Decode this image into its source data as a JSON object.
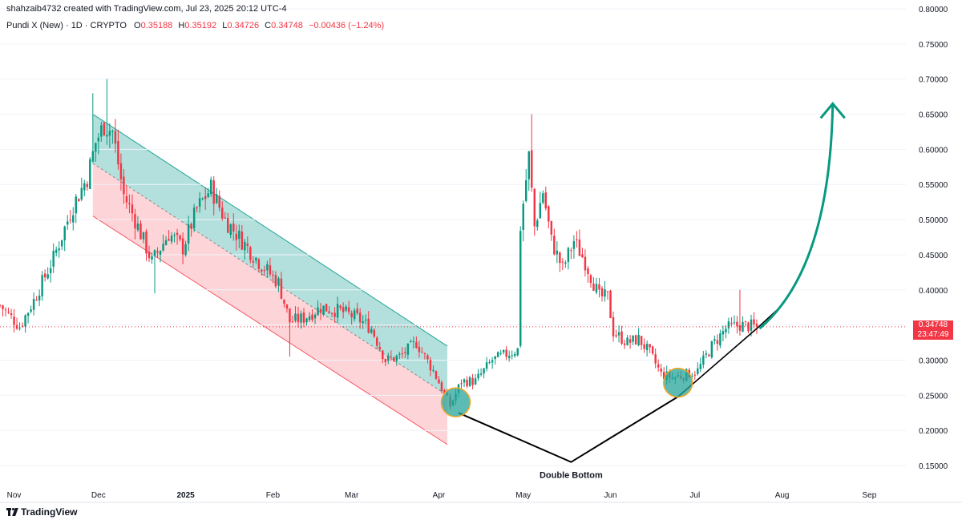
{
  "header": {
    "credit": "shahzaib4732 created with TradingView.com, Jul 23, 2025 20:12 UTC-4",
    "symbol": "Pundi X (New) · 1D · CRYPTO",
    "ohlc": [
      {
        "k": "O",
        "v": "0.35188"
      },
      {
        "k": "H",
        "v": "0.35192"
      },
      {
        "k": "L",
        "v": "0.34726"
      },
      {
        "k": "C",
        "v": "0.34748"
      }
    ],
    "change": "−0.00436 (−1.24%)"
  },
  "last_price": {
    "price": "0.34748",
    "countdown": "23:47:49"
  },
  "footer": {
    "brand": "TradingView"
  },
  "colors": {
    "up": "#089981",
    "down": "#f23645",
    "channel_upper": "#26a69a",
    "channel_lower": "#f7525f",
    "arrow": "#089981",
    "circle_fill": "#26a69a",
    "circle_stroke": "#f5a623",
    "line": "#000000"
  },
  "chart_data": {
    "type": "candlestick",
    "y_axis": {
      "side": "right",
      "range": [
        0.125,
        0.8125
      ],
      "ticks": [
        "0.80000",
        "0.75000",
        "0.70000",
        "0.65000",
        "0.60000",
        "0.55000",
        "0.50000",
        "0.45000",
        "0.40000",
        "0.35000",
        "0.30000",
        "0.25000",
        "0.20000",
        "0.15000"
      ]
    },
    "x_axis": {
      "start": "2024-10-27",
      "end": "2025-09-14",
      "ticks": [
        {
          "label": "Nov",
          "date": "2024-11-01"
        },
        {
          "label": "Dec",
          "date": "2024-12-01"
        },
        {
          "label": "2025",
          "date": "2025-01-01",
          "bold": true
        },
        {
          "label": "Feb",
          "date": "2025-02-01"
        },
        {
          "label": "Mar",
          "date": "2025-03-01"
        },
        {
          "label": "Apr",
          "date": "2025-04-01"
        },
        {
          "label": "May",
          "date": "2025-05-01"
        },
        {
          "label": "Jun",
          "date": "2025-06-01"
        },
        {
          "label": "Jul",
          "date": "2025-07-01"
        },
        {
          "label": "Aug",
          "date": "2025-08-01"
        },
        {
          "label": "Sep",
          "date": "2025-09-01"
        }
      ]
    },
    "approx_closes": [
      {
        "d": "2024-10-27",
        "p": 0.378
      },
      {
        "d": "2024-11-03",
        "p": 0.348
      },
      {
        "d": "2024-11-08",
        "p": 0.385
      },
      {
        "d": "2024-11-15",
        "p": 0.445
      },
      {
        "d": "2024-11-22",
        "p": 0.52
      },
      {
        "d": "2024-11-27",
        "p": 0.56
      },
      {
        "d": "2024-11-30",
        "p": 0.61
      },
      {
        "d": "2024-12-03",
        "p": 0.635
      },
      {
        "d": "2024-12-06",
        "p": 0.625
      },
      {
        "d": "2024-12-10",
        "p": 0.535
      },
      {
        "d": "2024-12-14",
        "p": 0.5
      },
      {
        "d": "2024-12-20",
        "p": 0.44
      },
      {
        "d": "2024-12-26",
        "p": 0.48
      },
      {
        "d": "2024-12-31",
        "p": 0.46
      },
      {
        "d": "2025-01-05",
        "p": 0.515
      },
      {
        "d": "2025-01-10",
        "p": 0.545
      },
      {
        "d": "2025-01-15",
        "p": 0.5
      },
      {
        "d": "2025-01-20",
        "p": 0.475
      },
      {
        "d": "2025-01-27",
        "p": 0.44
      },
      {
        "d": "2025-02-03",
        "p": 0.41
      },
      {
        "d": "2025-02-07",
        "p": 0.355
      },
      {
        "d": "2025-02-12",
        "p": 0.36
      },
      {
        "d": "2025-02-18",
        "p": 0.375
      },
      {
        "d": "2025-02-25",
        "p": 0.37
      },
      {
        "d": "2025-03-03",
        "p": 0.36
      },
      {
        "d": "2025-03-08",
        "p": 0.345
      },
      {
        "d": "2025-03-13",
        "p": 0.3
      },
      {
        "d": "2025-03-18",
        "p": 0.305
      },
      {
        "d": "2025-03-24",
        "p": 0.325
      },
      {
        "d": "2025-03-30",
        "p": 0.285
      },
      {
        "d": "2025-04-05",
        "p": 0.235
      },
      {
        "d": "2025-04-09",
        "p": 0.27
      },
      {
        "d": "2025-04-14",
        "p": 0.27
      },
      {
        "d": "2025-04-20",
        "p": 0.3
      },
      {
        "d": "2025-04-26",
        "p": 0.31
      },
      {
        "d": "2025-04-29",
        "p": 0.315
      },
      {
        "d": "2025-04-30",
        "p": 0.49
      },
      {
        "d": "2025-05-03",
        "p": 0.59
      },
      {
        "d": "2025-05-05",
        "p": 0.49
      },
      {
        "d": "2025-05-08",
        "p": 0.54
      },
      {
        "d": "2025-05-11",
        "p": 0.47
      },
      {
        "d": "2025-05-15",
        "p": 0.43
      },
      {
        "d": "2025-05-19",
        "p": 0.47
      },
      {
        "d": "2025-05-23",
        "p": 0.44
      },
      {
        "d": "2025-05-28",
        "p": 0.39
      },
      {
        "d": "2025-05-31",
        "p": 0.39
      },
      {
        "d": "2025-06-02",
        "p": 0.34
      },
      {
        "d": "2025-06-07",
        "p": 0.325
      },
      {
        "d": "2025-06-11",
        "p": 0.33
      },
      {
        "d": "2025-06-15",
        "p": 0.31
      },
      {
        "d": "2025-06-19",
        "p": 0.28
      },
      {
        "d": "2025-06-23",
        "p": 0.275
      },
      {
        "d": "2025-06-28",
        "p": 0.28
      },
      {
        "d": "2025-07-02",
        "p": 0.285
      },
      {
        "d": "2025-07-07",
        "p": 0.32
      },
      {
        "d": "2025-07-12",
        "p": 0.345
      },
      {
        "d": "2025-07-17",
        "p": 0.35
      },
      {
        "d": "2025-07-23",
        "p": 0.34748
      }
    ],
    "spike_wicks": [
      {
        "d": "2024-11-29",
        "hi": 0.68
      },
      {
        "d": "2024-12-04",
        "hi": 0.7
      },
      {
        "d": "2025-05-04",
        "hi": 0.65
      },
      {
        "d": "2025-07-17",
        "hi": 0.4
      },
      {
        "d": "2024-12-21",
        "lo": 0.395
      },
      {
        "d": "2025-02-07",
        "lo": 0.305
      }
    ],
    "annotations": {
      "channel": {
        "start": "2024-11-29",
        "end": "2025-04-04",
        "top_start": 0.65,
        "top_end": 0.32,
        "mid_start": 0.58,
        "mid_end": 0.25,
        "bot_start": 0.505,
        "bot_end": 0.18
      },
      "circles": [
        {
          "d": "2025-04-07",
          "p": 0.24
        },
        {
          "d": "2025-06-25",
          "p": 0.268
        }
      ],
      "v_line": [
        {
          "d": "2025-04-08",
          "p": 0.225
        },
        {
          "d": "2025-05-18",
          "p": 0.155
        },
        {
          "d": "2025-06-25",
          "p": 0.248
        }
      ],
      "trendline": [
        {
          "d": "2025-06-25",
          "p": 0.248
        },
        {
          "d": "2025-07-23",
          "p": 0.345
        },
        {
          "d": "2025-08-01",
          "p": 0.378
        }
      ],
      "arrow": {
        "from": {
          "d": "2025-07-24",
          "p": 0.345
        },
        "ctrl": {
          "d": "2025-08-18",
          "p": 0.43
        },
        "to": {
          "d": "2025-08-19",
          "p": 0.665
        }
      },
      "pattern_label": "Double Bottom"
    }
  }
}
